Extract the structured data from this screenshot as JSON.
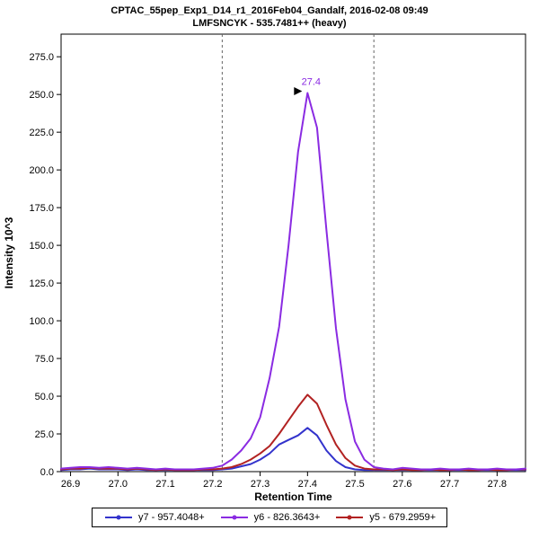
{
  "header": {
    "title_line1": "CPTAC_55pep_Exp1_D14_r1_2016Feb04_Gandalf, 2016-02-08 09:49",
    "title_line2": "LMFSNCYK - 535.7481++ (heavy)"
  },
  "chart_data": {
    "type": "line",
    "title": "CPTAC_55pep_Exp1_D14_r1_2016Feb04_Gandalf, 2016-02-08 09:49",
    "subtitle": "LMFSNCYK - 535.7481++ (heavy)",
    "xlabel": "Retention Time",
    "ylabel": "Intensity 10^3",
    "xlim": [
      26.88,
      27.86
    ],
    "ylim": [
      0,
      290
    ],
    "xticks": [
      26.9,
      27.0,
      27.1,
      27.2,
      27.3,
      27.4,
      27.5,
      27.6,
      27.7,
      27.8
    ],
    "yticks": [
      0.0,
      25.0,
      50.0,
      75.0,
      100.0,
      125.0,
      150.0,
      175.0,
      200.0,
      225.0,
      250.0,
      275.0
    ],
    "grid": false,
    "legend_position": "bottom",
    "border_color": "#000000",
    "boundary_line_color": "#666666",
    "peak_boundaries": [
      27.22,
      27.54
    ],
    "peak_annotation": {
      "label": "27.4",
      "x": 27.4,
      "y": 251,
      "color": "#8a2be2"
    },
    "x": [
      26.88,
      26.9,
      26.92,
      26.94,
      26.96,
      26.98,
      27.0,
      27.02,
      27.04,
      27.06,
      27.08,
      27.1,
      27.12,
      27.14,
      27.16,
      27.18,
      27.2,
      27.22,
      27.24,
      27.26,
      27.28,
      27.3,
      27.32,
      27.34,
      27.36,
      27.38,
      27.4,
      27.42,
      27.44,
      27.46,
      27.48,
      27.5,
      27.52,
      27.54,
      27.56,
      27.58,
      27.6,
      27.62,
      27.64,
      27.66,
      27.68,
      27.7,
      27.72,
      27.74,
      27.76,
      27.78,
      27.8,
      27.82,
      27.84,
      27.86
    ],
    "series": [
      {
        "name": "y7 - 957.4048+",
        "color": "#3333cc",
        "y": [
          1,
          1.5,
          1.5,
          2,
          1.5,
          1.5,
          1.5,
          1,
          1.5,
          1,
          1,
          1,
          1,
          1,
          1,
          1,
          1,
          1.5,
          2,
          3.5,
          5,
          8,
          12,
          18,
          21,
          24,
          29,
          24,
          14,
          7,
          3,
          1.5,
          1,
          1,
          1,
          1,
          1,
          1,
          1,
          1,
          1,
          1,
          1,
          1,
          1,
          1,
          1,
          1,
          1,
          1
        ]
      },
      {
        "name": "y6 - 826.3643+",
        "color": "#8a2be2",
        "y": [
          2,
          2.5,
          3,
          3,
          2.5,
          3,
          2.5,
          2,
          2.5,
          2,
          1.5,
          2,
          1.5,
          1.5,
          1.5,
          2,
          2.5,
          4,
          8,
          14,
          22,
          36,
          62,
          96,
          150,
          212,
          251,
          228,
          160,
          95,
          48,
          20,
          8,
          3,
          2,
          1.5,
          2.5,
          2,
          1.5,
          1.5,
          2,
          1.5,
          1.5,
          2,
          1.5,
          1.5,
          2,
          1.5,
          1.5,
          2
        ]
      },
      {
        "name": "y5 - 679.2959+",
        "color": "#b22222",
        "y": [
          1.5,
          2,
          2,
          2.5,
          2,
          2,
          2,
          1.5,
          2,
          1.5,
          1,
          1.5,
          1,
          1,
          1,
          1.5,
          1.5,
          2,
          3,
          5,
          8,
          12,
          17,
          25,
          34,
          43,
          51,
          45,
          31,
          18,
          9,
          4,
          2,
          1.5,
          1.5,
          1,
          1.5,
          1,
          1,
          1.5,
          1,
          1,
          1.5,
          1,
          1,
          1.5,
          1,
          1,
          1.5,
          1.5
        ]
      }
    ]
  }
}
